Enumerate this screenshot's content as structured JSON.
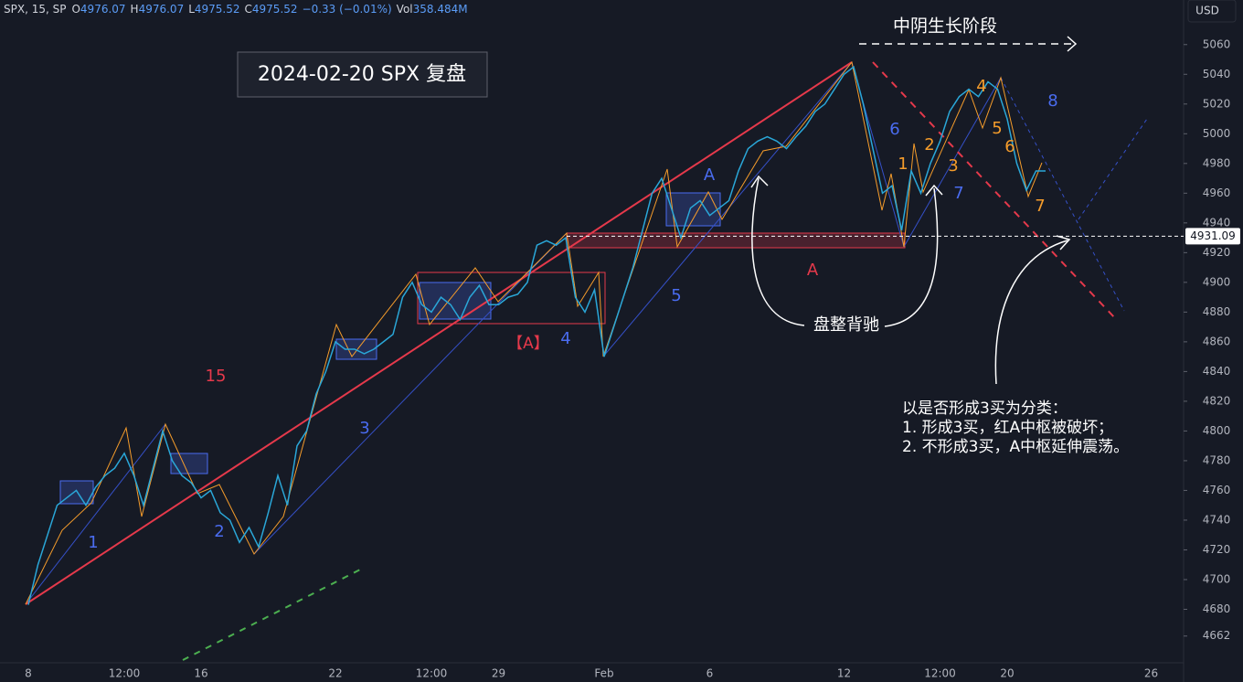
{
  "chart_data": {
    "type": "line",
    "title": "2024-02-20 SPX 复盘",
    "symbol": "SPX, 15, SP",
    "ohlc": [
      {
        "key": "O",
        "value": "4976.07"
      },
      {
        "key": "H",
        "value": "4976.07"
      },
      {
        "key": "L",
        "value": "4975.52"
      },
      {
        "key": "C",
        "value": "4975.52"
      },
      {
        "key": "",
        "value": "−0.33 (−0.01%)"
      },
      {
        "key": "Vol",
        "value": "358.484M"
      }
    ],
    "currency": "USD",
    "price_line": 4931.09,
    "color": "#2aa7d8",
    "categories": [
      "8",
      null,
      null,
      null,
      null,
      null,
      null,
      null,
      null,
      null,
      "12:00",
      null,
      null,
      null,
      null,
      null,
      null,
      null,
      "16",
      null,
      null,
      null,
      null,
      null,
      null,
      null,
      null,
      null,
      null,
      null,
      null,
      null,
      "22",
      null,
      null,
      null,
      null,
      null,
      null,
      null,
      null,
      null,
      "12:00",
      null,
      null,
      null,
      null,
      null,
      null,
      "29",
      null,
      null,
      null,
      null,
      null,
      null,
      null,
      null,
      null,
      null,
      "Feb",
      null,
      null,
      null,
      null,
      null,
      null,
      null,
      null,
      null,
      null,
      "6",
      null,
      null,
      null,
      null,
      null,
      null,
      null,
      null,
      null,
      null,
      null,
      null,
      null,
      "12",
      null,
      null,
      null,
      null,
      null,
      null,
      null,
      null,
      null,
      "12:00",
      null,
      null,
      null,
      null,
      null,
      null,
      "20",
      null,
      null,
      null,
      null,
      null,
      null,
      null,
      null,
      null,
      null,
      null,
      null,
      null,
      null,
      "26"
    ],
    "values": [
      4683,
      4710,
      4730,
      4750,
      4755,
      4760,
      4750,
      4762,
      4770,
      4775,
      4785,
      4770,
      4750,
      4775,
      4800,
      4780,
      4770,
      4765,
      4755,
      4760,
      4745,
      4740,
      4725,
      4735,
      4722,
      4745,
      4770,
      4750,
      4790,
      4800,
      4825,
      4840,
      4860,
      4855,
      4855,
      4852,
      4855,
      4860,
      4865,
      4890,
      4900,
      4885,
      4880,
      4890,
      4885,
      4875,
      4890,
      4898,
      4885,
      4885,
      4890,
      4892,
      4900,
      4925,
      4928,
      4925,
      4930,
      4890,
      4880,
      4895,
      4850,
      4870,
      4890,
      4910,
      4935,
      4960,
      4970,
      4950,
      4930,
      4950,
      4955,
      4945,
      4950,
      4955,
      4975,
      4990,
      4995,
      4998,
      4995,
      4990,
      4998,
      5005,
      5015,
      5020,
      5030,
      5040,
      5045,
      5020,
      4990,
      4960,
      4965,
      4935,
      4975,
      4960,
      4980,
      4995,
      5015,
      5025,
      5030,
      5025,
      5035,
      5030,
      5010,
      4980,
      4962,
      4975,
      4975,
      null,
      null,
      null,
      null,
      null,
      null,
      null,
      null,
      null,
      null,
      null
    ],
    "ylim": [
      4644,
      5090
    ],
    "yticks": [
      4662,
      4680,
      4700,
      4720,
      4740,
      4760,
      4780,
      4800,
      4820,
      4840,
      4860,
      4880,
      4900,
      4920,
      4940,
      4960,
      4980,
      5000,
      5020,
      5040,
      5060
    ],
    "grid": false,
    "annotations": [
      {
        "text": "中阴生长阶段",
        "color": "#ffffff"
      },
      {
        "text": "15",
        "color": "#e5394b"
      },
      {
        "text": "1",
        "color": "#4a6cf0"
      },
      {
        "text": "2",
        "color": "#4a6cf0"
      },
      {
        "text": "3",
        "color": "#4a6cf0"
      },
      {
        "text": "【A】",
        "color": "#e5394b"
      },
      {
        "text": "4",
        "color": "#4a6cf0"
      },
      {
        "text": "5",
        "color": "#4a6cf0"
      },
      {
        "text": "A",
        "color": "#4a6cf0"
      },
      {
        "text": "A",
        "color": "#e5394b"
      },
      {
        "text": "6",
        "color": "#4a6cf0"
      },
      {
        "text": "1",
        "color": "#f59c2b"
      },
      {
        "text": "2",
        "color": "#f59c2b"
      },
      {
        "text": "3",
        "color": "#f59c2b"
      },
      {
        "text": "7",
        "color": "#4a6cf0"
      },
      {
        "text": "4",
        "color": "#f59c2b"
      },
      {
        "text": "5",
        "color": "#f59c2b"
      },
      {
        "text": "6",
        "color": "#f59c2b"
      },
      {
        "text": "7",
        "color": "#f59c2b"
      },
      {
        "text": "8",
        "color": "#4a6cf0"
      },
      {
        "text": "盘整背驰",
        "color": "#ffffff"
      }
    ],
    "note": [
      "以是否形成3买为分类：",
      "1. 形成3买，红A中枢被破坏；",
      "2. 不形成3买，A中枢延伸震荡。"
    ]
  }
}
